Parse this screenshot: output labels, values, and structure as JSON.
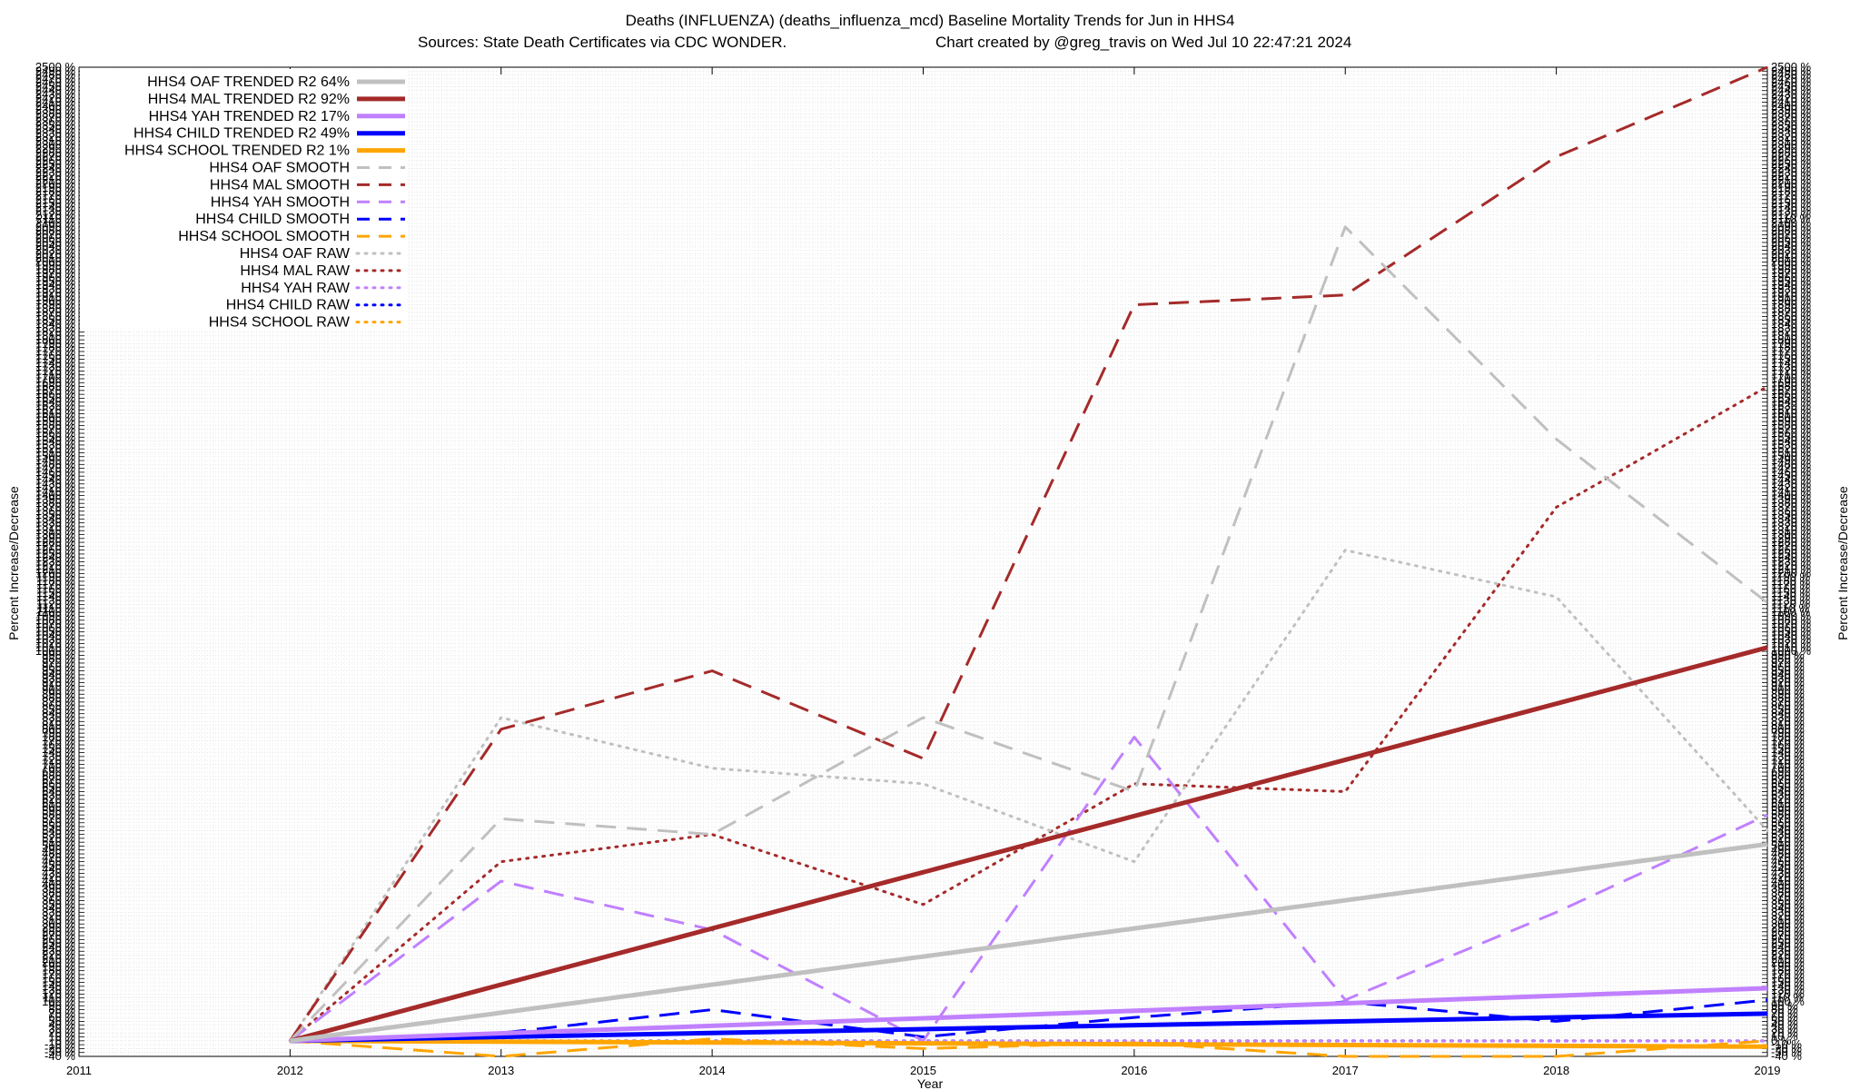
{
  "chart_data": {
    "type": "line",
    "title": "Deaths (INFLUENZA) (deaths_influenza_mcd)  Baseline Mortality Trends for Jun in HHS4",
    "subtitle_left": "Sources: State Death Certificates via CDC WONDER.",
    "subtitle_right": "Chart created by @greg_travis on Wed Jul 10 22:47:21 2024",
    "xlabel": "Year",
    "ylabel": "Percent Increase/Decrease",
    "xlim": [
      2011,
      2019
    ],
    "x_ticks": [
      "2011",
      "2012",
      "2013",
      "2014",
      "2015",
      "2016",
      "2017",
      "2018",
      "2019"
    ],
    "ylim": [
      -40,
      2500
    ],
    "y_tick_step": 10,
    "y_tick_suffix": " %",
    "y_tick_labels_visible": [
      "2500 %",
      "90 %",
      "80 %",
      "70 %",
      "60 %",
      "50 %",
      "40 %",
      "30 %",
      "20 %",
      "10 %",
      "0 %",
      "-10 %",
      "-20 %",
      "-30 %",
      "-40 %"
    ],
    "grid": true,
    "legend_placement": "top-left",
    "series": [
      {
        "name": "HHS4 OAF TRENDED R2  64%",
        "color": "#c0c0c0",
        "style": "solid",
        "width": 5,
        "x": [
          2012,
          2019
        ],
        "values": [
          0,
          505
        ]
      },
      {
        "name": "HHS4 MAL TRENDED R2  92%",
        "color": "#a52a2a",
        "style": "solid",
        "width": 5,
        "x": [
          2012,
          2019
        ],
        "values": [
          0,
          1010
        ]
      },
      {
        "name": "HHS4 YAH TRENDED R2  17%",
        "color": "#c080ff",
        "style": "solid",
        "width": 5,
        "x": [
          2012,
          2019
        ],
        "values": [
          0,
          135
        ]
      },
      {
        "name": "HHS4 CHILD TRENDED R2  49%",
        "color": "#0000ff",
        "style": "solid",
        "width": 5,
        "x": [
          2012,
          2019
        ],
        "values": [
          0,
          70
        ]
      },
      {
        "name": "HHS4 SCHOOL TRENDED R2  1%",
        "color": "#ffa500",
        "style": "solid",
        "width": 5,
        "x": [
          2012,
          2019
        ],
        "values": [
          0,
          -15
        ]
      },
      {
        "name": "HHS4 OAF SMOOTH",
        "color": "#c0c0c0",
        "style": "dashed",
        "width": 3,
        "x": [
          2012,
          2013,
          2014,
          2015,
          2016,
          2017,
          2018,
          2019
        ],
        "values": [
          0,
          570,
          530,
          830,
          640,
          2090,
          1545,
          1125
        ]
      },
      {
        "name": "HHS4 MAL SMOOTH",
        "color": "#a52a2a",
        "style": "dashed",
        "width": 3,
        "x": [
          2012,
          2013,
          2014,
          2015,
          2016,
          2017,
          2018,
          2019
        ],
        "values": [
          0,
          800,
          950,
          725,
          1890,
          1915,
          2270,
          2500
        ]
      },
      {
        "name": "HHS4 YAH SMOOTH",
        "color": "#c080ff",
        "style": "dashed",
        "width": 3,
        "x": [
          2012,
          2013,
          2014,
          2015,
          2016,
          2017,
          2018,
          2019
        ],
        "values": [
          0,
          410,
          285,
          0,
          780,
          105,
          330,
          580
        ]
      },
      {
        "name": "HHS4 CHILD SMOOTH",
        "color": "#0000ff",
        "style": "dashed",
        "width": 3,
        "x": [
          2012,
          2013,
          2014,
          2015,
          2016,
          2017,
          2018,
          2019
        ],
        "values": [
          0,
          20,
          80,
          10,
          60,
          100,
          50,
          105
        ]
      },
      {
        "name": "HHS4 SCHOOL SMOOTH",
        "color": "#ffa500",
        "style": "dashed",
        "width": 3,
        "x": [
          2012,
          2013,
          2014,
          2015,
          2016,
          2017,
          2018,
          2019
        ],
        "values": [
          0,
          -40,
          5,
          -20,
          -5,
          -40,
          -40,
          0
        ]
      },
      {
        "name": "HHS4 OAF RAW",
        "color": "#c0c0c0",
        "style": "dotted",
        "width": 3,
        "x": [
          2012,
          2013,
          2014,
          2015,
          2016,
          2017,
          2018,
          2019
        ],
        "values": [
          0,
          830,
          700,
          660,
          460,
          1260,
          1140,
          540
        ]
      },
      {
        "name": "HHS4 MAL RAW",
        "color": "#a52a2a",
        "style": "dotted",
        "width": 3,
        "x": [
          2012,
          2013,
          2014,
          2015,
          2016,
          2017,
          2018,
          2019
        ],
        "values": [
          0,
          460,
          530,
          350,
          660,
          640,
          1370,
          1680
        ]
      },
      {
        "name": "HHS4 YAH RAW",
        "color": "#c080ff",
        "style": "dotted",
        "width": 3,
        "x": [
          2012,
          2013,
          2014,
          2015,
          2016,
          2017,
          2018,
          2019
        ],
        "values": [
          0,
          0,
          0,
          0,
          0,
          0,
          0,
          0
        ]
      },
      {
        "name": "HHS4 CHILD RAW",
        "color": "#0000ff",
        "style": "dotted",
        "width": 3,
        "x": [
          2012,
          2013,
          2014,
          2015,
          2016,
          2017,
          2018,
          2019
        ],
        "values": [
          0,
          0,
          0,
          0,
          0,
          0,
          0,
          0
        ]
      },
      {
        "name": "HHS4 SCHOOL RAW",
        "color": "#ffa500",
        "style": "dotted",
        "width": 3,
        "x": [
          2012,
          2013,
          2014,
          2015,
          2016,
          2017,
          2018,
          2019
        ],
        "values": [
          0,
          0,
          0,
          0,
          0,
          0,
          0,
          0
        ]
      }
    ]
  }
}
